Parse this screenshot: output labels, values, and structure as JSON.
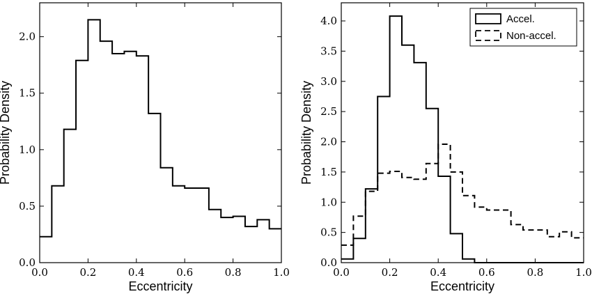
{
  "chart_data": [
    {
      "type": "histogram",
      "xlabel": "Eccentricity",
      "ylabel": "Probability Density",
      "xlim": [
        0.0,
        1.0
      ],
      "ylim": [
        0.0,
        2.3
      ],
      "xticks": [
        0.0,
        0.2,
        0.4,
        0.6,
        0.8,
        1.0
      ],
      "xtick_labels": [
        "0.0",
        "0.2",
        "0.4",
        "0.6",
        "0.8",
        "1.0"
      ],
      "yticks": [
        0.0,
        0.5,
        1.0,
        1.5,
        2.0
      ],
      "ytick_labels": [
        "0.0",
        "0.5",
        "1.0",
        "1.5",
        "2.0"
      ],
      "bin_edges": [
        0.0,
        0.05,
        0.1,
        0.15,
        0.2,
        0.25,
        0.3,
        0.35,
        0.4,
        0.45,
        0.5,
        0.55,
        0.6,
        0.65,
        0.7,
        0.75,
        0.8,
        0.85,
        0.9,
        0.95,
        1.0
      ],
      "series": [
        {
          "style": "solid",
          "color": "#000000",
          "values": [
            0.23,
            0.68,
            1.18,
            1.79,
            2.15,
            1.96,
            1.85,
            1.87,
            1.83,
            1.32,
            0.84,
            0.68,
            0.66,
            0.66,
            0.47,
            0.4,
            0.41,
            0.32,
            0.38,
            0.3
          ]
        }
      ],
      "legend": null
    },
    {
      "type": "histogram",
      "xlabel": "Eccentricity",
      "ylabel": "Probability Density",
      "xlim": [
        0.0,
        1.0
      ],
      "ylim": [
        0.0,
        4.3
      ],
      "xticks": [
        0.0,
        0.2,
        0.4,
        0.6,
        0.8,
        1.0
      ],
      "xtick_labels": [
        "0.0",
        "0.2",
        "0.4",
        "0.6",
        "0.8",
        "1.0"
      ],
      "yticks": [
        0.0,
        0.5,
        1.0,
        1.5,
        2.0,
        2.5,
        3.0,
        3.5,
        4.0
      ],
      "ytick_labels": [
        "0.0",
        "0.5",
        "1.0",
        "1.5",
        "2.0",
        "2.5",
        "3.0",
        "3.5",
        "4.0"
      ],
      "bin_edges": [
        0.0,
        0.05,
        0.1,
        0.15,
        0.2,
        0.25,
        0.3,
        0.35,
        0.4,
        0.45,
        0.5,
        0.55,
        0.6,
        0.65,
        0.7,
        0.75,
        0.8,
        0.85,
        0.9,
        0.95,
        1.0
      ],
      "series": [
        {
          "name": "Accel.",
          "style": "solid",
          "color": "#000000",
          "values": [
            0.06,
            0.4,
            1.22,
            2.75,
            4.08,
            3.6,
            3.31,
            2.55,
            1.43,
            0.48,
            0.06,
            0.0,
            0.0,
            0.0,
            0.0,
            0.0,
            0.0,
            0.0,
            0.0,
            0.0
          ]
        },
        {
          "name": "Non-accel.",
          "style": "dashed",
          "color": "#000000",
          "values": [
            0.29,
            0.77,
            1.18,
            1.48,
            1.51,
            1.41,
            1.38,
            1.64,
            1.96,
            1.5,
            1.11,
            0.92,
            0.87,
            0.87,
            0.63,
            0.54,
            0.54,
            0.43,
            0.51,
            0.41
          ]
        }
      ],
      "legend": "top-right"
    }
  ]
}
